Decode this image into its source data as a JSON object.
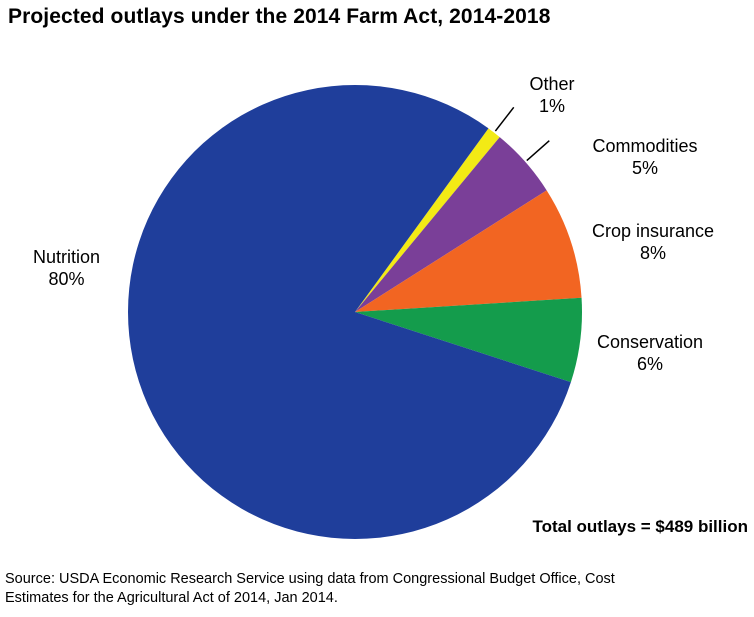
{
  "title": "Projected outlays under the 2014 Farm Act, 2014-2018",
  "chart_data": {
    "type": "pie",
    "title": "Projected outlays under the 2014 Farm Act, 2014-2018",
    "units": "percent of total outlays",
    "start_angle_deg": 36,
    "direction": "clockwise",
    "legend_position": "outside-labels",
    "slices": [
      {
        "label": "Other",
        "value": 1,
        "pct_label": "1%",
        "color": "#f3ea15",
        "leader": true
      },
      {
        "label": "Commodities",
        "value": 5,
        "pct_label": "5%",
        "color": "#7a3f98",
        "leader": true
      },
      {
        "label": "Crop insurance",
        "value": 8,
        "pct_label": "8%",
        "color": "#f26522",
        "leader": false
      },
      {
        "label": "Conservation",
        "value": 6,
        "pct_label": "6%",
        "color": "#149c4c",
        "leader": false
      },
      {
        "label": "Nutrition",
        "value": 80,
        "pct_label": "80%",
        "color": "#1f3e9b",
        "leader": false
      }
    ],
    "annotation": "Total outlays = $489 billion"
  },
  "source": {
    "line1": "Source: USDA Economic Research Service using data from Congressional Budget Office, Cost",
    "line2": "Estimates for the Agricultural Act of 2014, Jan 2014."
  }
}
